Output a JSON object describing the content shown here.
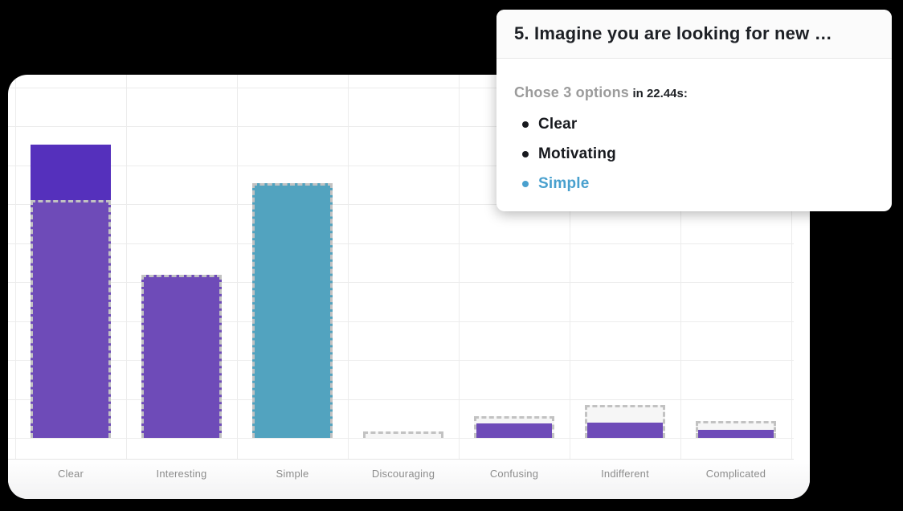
{
  "popup": {
    "title": "5. Imagine you are looking for new …",
    "summary": {
      "muted": "Chose 3 options",
      "strong": "in 22.44s:"
    },
    "options": [
      {
        "label": "Clear",
        "highlight": false
      },
      {
        "label": "Motivating",
        "highlight": false
      },
      {
        "label": "Simple",
        "highlight": true
      }
    ],
    "highlight_color": "#49A0CE",
    "text_color": "#17191E"
  },
  "chart_data": {
    "type": "bar",
    "title": "",
    "xlabel": "",
    "ylabel": "",
    "legend": "none",
    "grid": "on",
    "categories": [
      "Clear",
      "Interesting",
      "Simple",
      "Discouraging",
      "Confusing",
      "Indifferent",
      "Complicated"
    ],
    "series": [
      {
        "name": "previous-total-dashed-outline",
        "style": "dashed-outline",
        "values_pct": [
          65.5,
          44.9,
          70.1,
          1.8,
          6.0,
          9.1,
          4.6
        ]
      },
      {
        "name": "current-total-solid-fill",
        "style": "solid-fill",
        "values_pct": [
          80.8,
          44.9,
          70.1,
          0,
          4.0,
          4.2,
          2.2
        ]
      }
    ],
    "note": "no y-axis tick labels visible; values estimated as percent of plot height",
    "bar_colors": [
      "#6E4BB8",
      "#6E4BB8",
      "#52A3BF",
      "#6E4BB8",
      "#6E4BB8",
      "#6E4BB8",
      "#6E4BB8"
    ],
    "increment_color": "#5530BC",
    "empty_fill_color": "#F6F6F6",
    "dashed_outline_color": "#C2C2C2",
    "grid_color": "#ECECEC",
    "label_color": "#8C8C8C"
  }
}
